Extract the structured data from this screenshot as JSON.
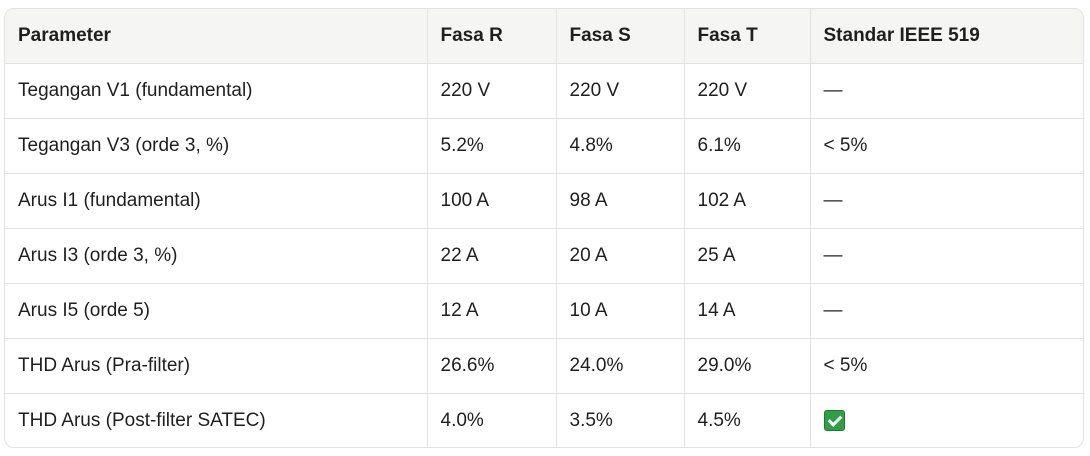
{
  "table": {
    "headers": [
      "Parameter",
      "Fasa R",
      "Fasa S",
      "Fasa T",
      "Standar IEEE 519"
    ],
    "rows": [
      [
        "Tegangan V1 (fundamental)",
        "220 V",
        "220 V",
        "220 V",
        "—"
      ],
      [
        "Tegangan V3 (orde 3, %)",
        "5.2%",
        "4.8%",
        "6.1%",
        "< 5%"
      ],
      [
        "Arus I1 (fundamental)",
        "100 A",
        "98 A",
        "102 A",
        "—"
      ],
      [
        "Arus I3 (orde 3, %)",
        "22 A",
        "20 A",
        "25 A",
        "—"
      ],
      [
        "Arus I5 (orde 5)",
        "12 A",
        "10 A",
        "14 A",
        "—"
      ],
      [
        "THD Arus (Pra-filter)",
        "26.6%",
        "24.0%",
        "29.0%",
        "< 5%"
      ],
      [
        "THD Arus (Post-filter SATEC)",
        "4.0%",
        "3.5%",
        "4.5%",
        ""
      ]
    ],
    "last_row_standard_icon": "check-mark-icon",
    "colors": {
      "header_bg": "#f5f5f3",
      "border": "#e2e2de",
      "check_green": "#2ea043"
    }
  }
}
